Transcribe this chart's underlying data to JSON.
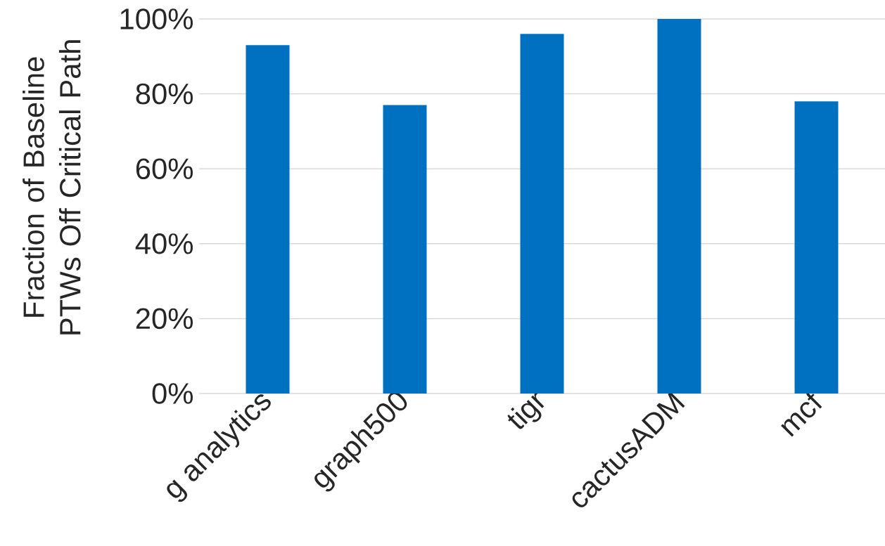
{
  "chart_data": {
    "type": "bar",
    "ylabel": "Fraction of Baseline PTWs Off Critical Path",
    "categories": [
      "g analytics",
      "graph500",
      "tigr",
      "cactusADM",
      "mcf"
    ],
    "values": [
      93,
      77,
      96,
      100,
      78
    ],
    "color": "#0070c0",
    "ylim": [
      0,
      100
    ],
    "yticks": [
      {
        "value": 0,
        "label": "0%"
      },
      {
        "value": 20,
        "label": "20%"
      },
      {
        "value": 40,
        "label": "40%"
      },
      {
        "value": 60,
        "label": "60%"
      },
      {
        "value": 80,
        "label": "80%"
      },
      {
        "value": 100,
        "label": "100%"
      }
    ],
    "grid": "y"
  }
}
